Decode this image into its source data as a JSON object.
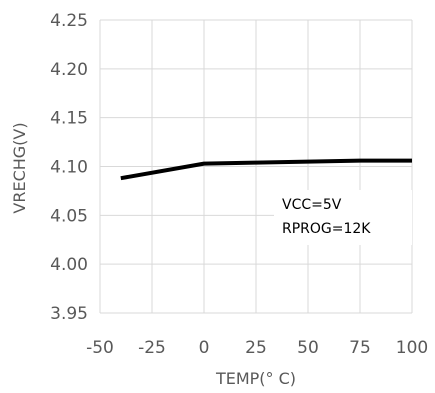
{
  "chart_data": {
    "type": "line",
    "xlabel": "TEMP(° C)",
    "ylabel": "VRECHG(V)",
    "xlim": [
      -50,
      100
    ],
    "ylim": [
      3.95,
      4.25
    ],
    "x_ticks": [
      "-50",
      "-25",
      "0",
      "25",
      "50",
      "75",
      "100"
    ],
    "y_ticks": [
      "4.25",
      "4.20",
      "4.15",
      "4.10",
      "4.05",
      "4.00",
      "3.95"
    ],
    "grid": true,
    "annotations": [
      "VCC=5V",
      "RPROG=12K"
    ],
    "series": [
      {
        "x": [
          -40,
          0,
          25,
          50,
          75,
          100
        ],
        "y": [
          4.088,
          4.103,
          4.104,
          4.105,
          4.106,
          4.106
        ]
      }
    ],
    "line_color": "#000000",
    "grid_color": "#d9d9d9"
  }
}
